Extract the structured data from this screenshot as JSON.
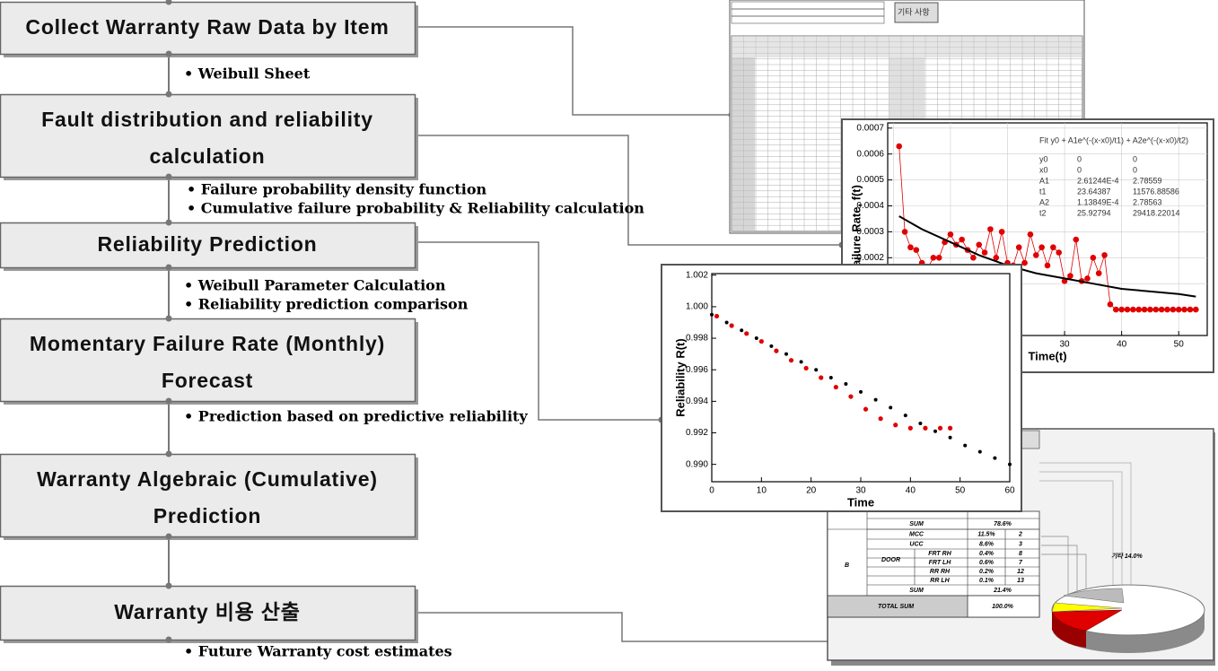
{
  "steps": [
    [
      "Collect Warranty Raw Data by Item"
    ],
    [
      "Fault distribution and reliability",
      "calculation"
    ],
    [
      "Reliability Prediction"
    ],
    [
      "Momentary Failure Rate (Monthly)",
      "Forecast"
    ],
    [
      "Warranty Algebraic (Cumulative)",
      "Prediction"
    ],
    [
      "Warranty 비용 산출"
    ]
  ],
  "notes": [
    [
      "• Weibull Sheet"
    ],
    [
      "• Failure probability density function",
      "• Cumulative failure probability & Reliability calculation"
    ],
    [
      "• Weibull Parameter Calculation",
      "• Reliability prediction comparison"
    ],
    [
      "• Prediction based on predictive reliability"
    ],
    [
      "• Future Warranty cost estimates"
    ]
  ],
  "sheet": {
    "header": "기타 사항"
  },
  "failure_rate_chart": {
    "type": "scatter",
    "y_label": "Failure Rate, f(t)",
    "x_label": "Time(t)",
    "xlim": [
      -1,
      55
    ],
    "ylim": [
      -0.0001,
      0.00072
    ],
    "xticks": [
      0,
      10,
      20,
      30,
      40,
      50
    ],
    "yticks": [
      0.0001,
      0.0002,
      0.0003,
      0.0004,
      0.0005,
      0.0006,
      0.0007
    ],
    "fit_title": "Fit y0 + A1e^(-(x-x0)/t1) + A2e^(-(x-x0)/t2)",
    "fit_rows": [
      [
        "y0",
        "0",
        "0"
      ],
      [
        "x0",
        "0",
        "0"
      ],
      [
        "A1",
        "2.61244E-4",
        "2.78559"
      ],
      [
        "t1",
        "23.64387",
        "11576.88586"
      ],
      [
        "A2",
        "1.13849E-4",
        "2.78563"
      ],
      [
        "t2",
        "25.92794",
        "29418.22014"
      ]
    ],
    "series": [
      {
        "name": "Observed",
        "color": "#e00000",
        "x": [
          1,
          2,
          3,
          4,
          5,
          6,
          7,
          8,
          9,
          10,
          11,
          12,
          13,
          14,
          15,
          16,
          17,
          18,
          19,
          20,
          21,
          22,
          23,
          24,
          25,
          26,
          27,
          28,
          29,
          30,
          31,
          32,
          33,
          34,
          35,
          36,
          37,
          38,
          39,
          40,
          41,
          42,
          43,
          44,
          45,
          46,
          47,
          48,
          49,
          50,
          51,
          52,
          53
        ],
        "values": [
          0.00063,
          0.0003,
          0.00024,
          0.00023,
          0.00018,
          0.00016,
          0.0002,
          0.0002,
          0.00026,
          0.00029,
          0.00025,
          0.00027,
          0.00023,
          0.0002,
          0.00025,
          0.00022,
          0.00031,
          0.0002,
          0.0003,
          0.00018,
          0.00017,
          0.00024,
          0.00018,
          0.00029,
          0.00021,
          0.00024,
          0.00017,
          0.00024,
          0.00022,
          0.00011,
          0.00013,
          0.00027,
          0.00011,
          0.00012,
          0.0002,
          0.00014,
          0.00021,
          2e-05,
          0.0,
          0.0,
          0.0,
          0.0,
          0.0,
          0.0,
          0.0,
          0.0,
          0.0,
          0.0,
          0.0,
          0.0,
          0.0,
          0.0,
          0.0
        ]
      },
      {
        "name": "Fit",
        "color": "#000000",
        "x": [
          1,
          5,
          10,
          15,
          20,
          25,
          30,
          35,
          40,
          45,
          50,
          53
        ],
        "values": [
          0.00036,
          0.00031,
          0.00026,
          0.00021,
          0.00017,
          0.00014,
          0.00012,
          0.0001,
          8e-05,
          7e-05,
          6e-05,
          5e-05
        ]
      }
    ]
  },
  "reliability_chart": {
    "type": "scatter",
    "y_label": "Reliability R(t)",
    "x_label": "Time",
    "xlim": [
      0,
      60
    ],
    "ylim": [
      0.9889,
      1.0021
    ],
    "xticks": [
      0,
      10,
      20,
      30,
      40,
      50,
      60
    ],
    "yticks": [
      {
        "value": 0.99,
        "label": "0.990"
      },
      {
        "value": 0.992,
        "label": "0.992"
      },
      {
        "value": 0.994,
        "label": "0.994"
      },
      {
        "value": 0.996,
        "label": "0.996"
      },
      {
        "value": 0.998,
        "label": "0.998"
      },
      {
        "value": 1.0,
        "label": "1.000"
      },
      {
        "value": 1.002,
        "label": "1.002"
      }
    ],
    "series": [
      {
        "name": "Weibull",
        "color": "#000000",
        "x": [
          0,
          3,
          6,
          9,
          12,
          15,
          18,
          21,
          24,
          27,
          30,
          33,
          36,
          39,
          42,
          45,
          48,
          51,
          54,
          57,
          60
        ],
        "values": [
          0.9995,
          0.999,
          0.9985,
          0.998,
          0.9975,
          0.997,
          0.9965,
          0.996,
          0.9955,
          0.9951,
          0.9946,
          0.9941,
          0.9936,
          0.9931,
          0.9926,
          0.9921,
          0.9917,
          0.9912,
          0.9908,
          0.9904,
          0.99
        ]
      },
      {
        "name": "Actual",
        "color": "#e00000",
        "x": [
          1,
          4,
          7,
          10,
          13,
          16,
          19,
          22,
          25,
          28,
          31,
          34,
          37,
          40,
          43,
          46,
          48
        ],
        "values": [
          0.9994,
          0.9988,
          0.9983,
          0.9978,
          0.9972,
          0.9966,
          0.9961,
          0.9955,
          0.9949,
          0.9943,
          0.9935,
          0.9929,
          0.9925,
          0.9923,
          0.9923,
          0.9923,
          0.9923
        ]
      }
    ]
  },
  "cost_table": {
    "group": "B",
    "door": "DOOR",
    "rows": [
      [
        "SUM",
        "78.6%"
      ],
      [
        "MCC",
        "11.5%",
        "2"
      ],
      [
        "UCC",
        "8.6%",
        "3"
      ],
      [
        "FRT  RH",
        "0.4%",
        "8"
      ],
      [
        "FRT  LH",
        "0.6%",
        "7"
      ],
      [
        "RR  RH",
        "0.2%",
        "12"
      ],
      [
        "RR  LH",
        "0.1%",
        "13"
      ],
      [
        "SUM",
        "21.4%"
      ]
    ],
    "total": [
      "TOTAL  SUM",
      "100.0%"
    ],
    "pie_label": "기타 14.0%"
  }
}
